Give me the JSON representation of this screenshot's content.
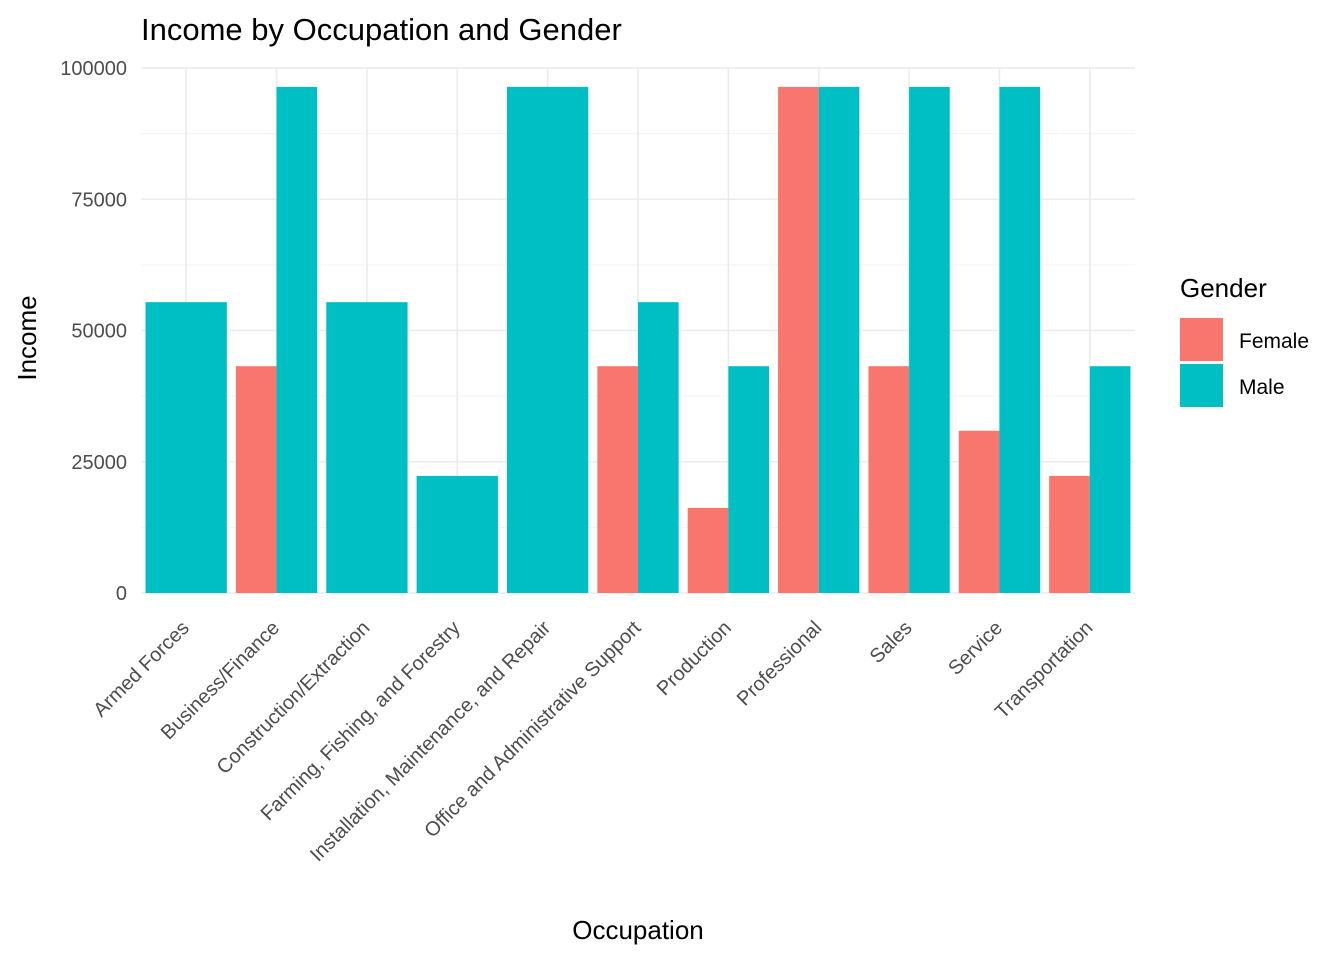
{
  "chart_data": {
    "type": "bar",
    "title": "Income by Occupation and Gender",
    "xlabel": "Occupation",
    "ylabel": "Income",
    "ylim": [
      0,
      100000
    ],
    "yticks": [
      0,
      25000,
      50000,
      75000,
      100000
    ],
    "ytick_labels": [
      "0",
      "25000",
      "50000",
      "75000",
      "100000"
    ],
    "grid": true,
    "legend": {
      "title": "Gender",
      "placement": "right"
    },
    "categories": [
      "Armed Forces",
      "Business/Finance",
      "Construction/Extraction",
      "Farming, Fishing, and Forestry",
      "Installation, Maintenance, and Repair",
      "Office and Administrative Support",
      "Production",
      "Professional",
      "Sales",
      "Service",
      "Transportation"
    ],
    "series": [
      {
        "name": "Female",
        "color": "#F8766D",
        "values": [
          null,
          43200,
          null,
          null,
          null,
          43200,
          16200,
          96400,
          43200,
          30900,
          22300
        ]
      },
      {
        "name": "Male",
        "color": "#00BFC4",
        "values": [
          55400,
          96400,
          55400,
          22300,
          96400,
          55400,
          43200,
          96400,
          96400,
          96400,
          43200
        ]
      }
    ]
  }
}
